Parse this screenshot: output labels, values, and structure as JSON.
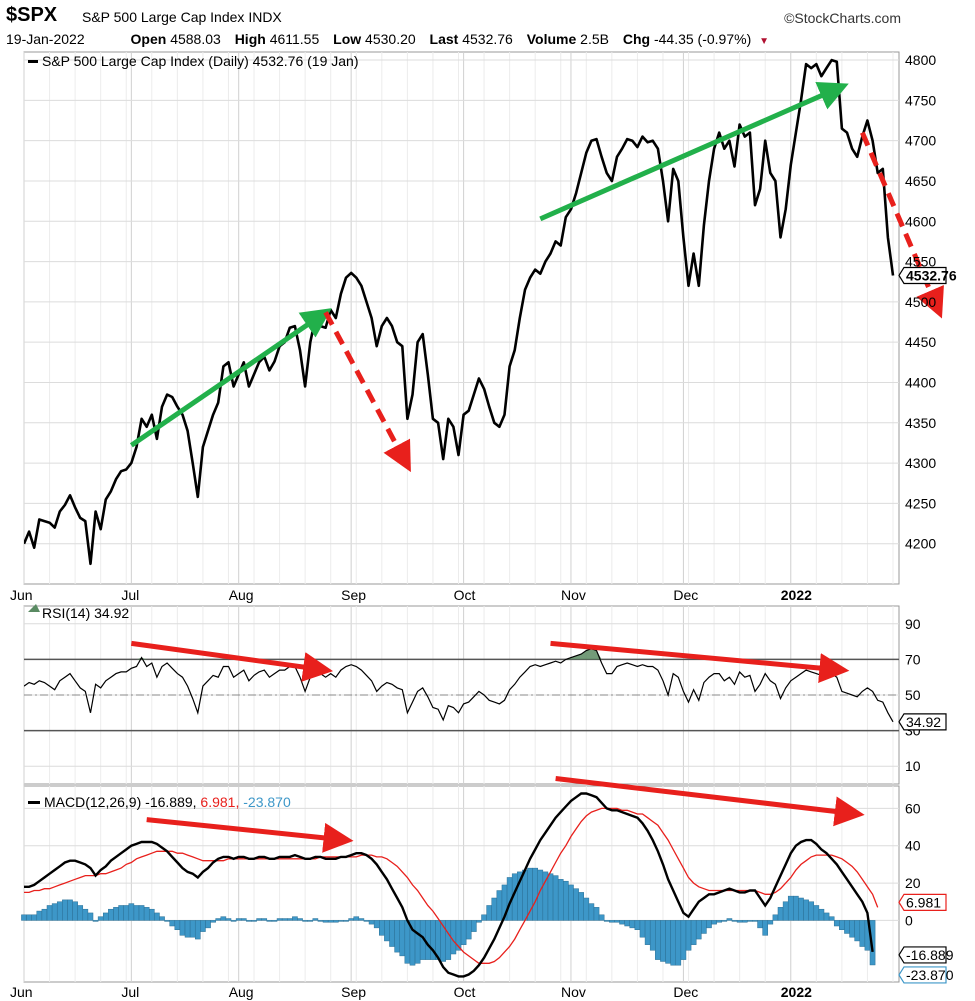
{
  "header": {
    "symbol": "$SPX",
    "index_name": "S&P 500 Large Cap Index",
    "exchange": "INDX",
    "brand": "©StockCharts.com",
    "date": "19-Jan-2022",
    "open_label": "Open",
    "open": "4588.03",
    "high_label": "High",
    "high": "4611.55",
    "low_label": "Low",
    "low": "4530.20",
    "last_label": "Last",
    "last": "4532.76",
    "volume_label": "Volume",
    "volume": "2.5B",
    "chg_label": "Chg",
    "chg": "-44.35 (-0.97%)"
  },
  "chart_data": [
    {
      "type": "line",
      "title": "S&P 500 Large Cap Index (Daily) 4532.76 (19 Jan)",
      "x_labels": [
        "Jun",
        "Jul",
        "Aug",
        "Sep",
        "Oct",
        "Nov",
        "Dec",
        "2022"
      ],
      "y_ticks": [
        4200,
        4250,
        4300,
        4350,
        4400,
        4450,
        4500,
        4550,
        4600,
        4650,
        4700,
        4750,
        4800
      ],
      "ylim": [
        4150,
        4810
      ],
      "last_value_label": "4532.76",
      "series": [
        {
          "name": "S&P 500 Large Cap Index (Daily)",
          "values": [
            4200,
            4215,
            4195,
            4230,
            4228,
            4226,
            4220,
            4240,
            4248,
            4260,
            4245,
            4232,
            4228,
            4175,
            4240,
            4218,
            4255,
            4265,
            4280,
            4290,
            4292,
            4300,
            4320,
            4355,
            4345,
            4360,
            4330,
            4370,
            4385,
            4382,
            4370,
            4360,
            4340,
            4300,
            4258,
            4320,
            4340,
            4360,
            4375,
            4420,
            4425,
            4395,
            4410,
            4425,
            4395,
            4410,
            4425,
            4432,
            4415,
            4426,
            4445,
            4450,
            4468,
            4470,
            4440,
            4395,
            4450,
            4480,
            4470,
            4468,
            4490,
            4480,
            4510,
            4530,
            4536,
            4530,
            4520,
            4500,
            4480,
            4445,
            4470,
            4480,
            4470,
            4450,
            4445,
            4355,
            4385,
            4450,
            4460,
            4410,
            4355,
            4350,
            4305,
            4355,
            4345,
            4310,
            4360,
            4365,
            4385,
            4405,
            4392,
            4370,
            4350,
            4345,
            4360,
            4420,
            4440,
            4480,
            4515,
            4530,
            4540,
            4535,
            4550,
            4560,
            4575,
            4570,
            4605,
            4615,
            4635,
            4660,
            4685,
            4700,
            4702,
            4680,
            4660,
            4650,
            4680,
            4690,
            4702,
            4700,
            4692,
            4705,
            4698,
            4700,
            4690,
            4650,
            4600,
            4665,
            4650,
            4580,
            4520,
            4560,
            4520,
            4595,
            4650,
            4690,
            4710,
            4690,
            4700,
            4668,
            4720,
            4705,
            4710,
            4620,
            4640,
            4700,
            4660,
            4650,
            4580,
            4615,
            4670,
            4710,
            4750,
            4795,
            4790,
            4795,
            4780,
            4790,
            4800,
            4798,
            4715,
            4710,
            4690,
            4680,
            4705,
            4725,
            4700,
            4660,
            4665,
            4580,
            4532.76
          ],
          "color": "#000000"
        }
      ],
      "annotations": [
        {
          "type": "arrow",
          "color": "#22b04b",
          "from": [
            21,
            4322
          ],
          "to": [
            59,
            4487
          ]
        },
        {
          "type": "arrow",
          "color": "#e8201c",
          "style": "dashed",
          "from": [
            59,
            4487
          ],
          "to": [
            75,
            4297
          ]
        },
        {
          "type": "arrow",
          "color": "#22b04b",
          "from": [
            101,
            4603
          ],
          "to": [
            160,
            4767
          ]
        },
        {
          "type": "arrow",
          "color": "#e8201c",
          "style": "dashed",
          "from": [
            164,
            4710
          ],
          "to": [
            179,
            4488
          ]
        }
      ]
    },
    {
      "type": "line",
      "title": "RSI(14) 34.92",
      "y_ticks": [
        10,
        30,
        50,
        70,
        90
      ],
      "ylim": [
        0,
        100
      ],
      "reference_lines": [
        70,
        30
      ],
      "midline": 50,
      "last_value_label": "34.92",
      "series": [
        {
          "name": "RSI(14)",
          "values": [
            55,
            57,
            56,
            58,
            57,
            55,
            53,
            58,
            60,
            62,
            58,
            54,
            52,
            40,
            56,
            54,
            58,
            60,
            62,
            63,
            63,
            65,
            66,
            71,
            66,
            68,
            60,
            66,
            68,
            65,
            62,
            60,
            55,
            48,
            40,
            55,
            58,
            61,
            60,
            66,
            66,
            60,
            62,
            64,
            58,
            61,
            63,
            64,
            60,
            62,
            64,
            64,
            66,
            66,
            60,
            52,
            60,
            64,
            62,
            60,
            62,
            60,
            64,
            66,
            67,
            66,
            64,
            61,
            58,
            52,
            55,
            57,
            56,
            54,
            53,
            40,
            46,
            52,
            54,
            49,
            43,
            42,
            36,
            44,
            43,
            40,
            45,
            46,
            49,
            52,
            50,
            47,
            46,
            45,
            47,
            53,
            56,
            60,
            63,
            66,
            67,
            66,
            67,
            68,
            69,
            68,
            70,
            71,
            72,
            73,
            75,
            76,
            75,
            68,
            62,
            62,
            66,
            67,
            68,
            67,
            66,
            67,
            66,
            66,
            64,
            58,
            50,
            62,
            60,
            52,
            46,
            53,
            47,
            57,
            60,
            62,
            62,
            58,
            60,
            56,
            63,
            60,
            61,
            52,
            56,
            62,
            58,
            56,
            48,
            54,
            58,
            60,
            62,
            64,
            63,
            62,
            61,
            62,
            62,
            60,
            52,
            51,
            50,
            49,
            52,
            54,
            52,
            47,
            46,
            40,
            34.92
          ],
          "color": "#000000"
        }
      ],
      "annotations": [
        {
          "type": "arrow",
          "color": "#e8201c",
          "from": [
            21,
            79
          ],
          "to": [
            59,
            64
          ]
        },
        {
          "type": "arrow",
          "color": "#e8201c",
          "from": [
            103,
            79
          ],
          "to": [
            160,
            64
          ]
        }
      ]
    },
    {
      "type": "line",
      "title": "MACD(12,26,9)",
      "values_label": "-16.889, 6.981, -23.870",
      "y_ticks": [
        0,
        20,
        40,
        60
      ],
      "ylim": [
        -33,
        72
      ],
      "last_value_labels": [
        "6.981",
        "-16.889",
        "-23.870"
      ],
      "series": [
        {
          "name": "MACD(12,26,9)",
          "color": "#000000",
          "values": [
            18,
            18,
            19,
            21,
            23,
            25,
            27,
            29,
            31,
            32,
            32,
            31,
            30,
            28,
            24,
            27,
            29,
            32,
            34,
            36,
            38,
            40,
            41,
            42,
            42,
            42,
            41,
            39,
            37,
            34,
            31,
            28,
            26,
            25,
            23,
            26,
            28,
            31,
            33,
            34,
            34,
            33,
            34,
            34,
            33,
            33,
            34,
            34,
            33,
            33,
            34,
            34,
            34,
            35,
            34,
            33,
            33,
            34,
            34,
            33,
            33,
            33,
            34,
            34,
            35,
            36,
            36,
            35,
            33,
            30,
            26,
            22,
            17,
            12,
            7,
            0,
            -5,
            -7,
            -9,
            -13,
            -16,
            -20,
            -25,
            -28,
            -29,
            -30,
            -30,
            -29,
            -27,
            -24,
            -20,
            -15,
            -10,
            -4,
            2,
            9,
            15,
            21,
            27,
            33,
            38,
            43,
            47,
            51,
            55,
            58,
            61,
            64,
            66,
            68,
            68,
            67,
            66,
            63,
            60,
            59,
            59,
            58,
            57,
            56,
            55,
            52,
            48,
            43,
            37,
            30,
            22,
            16,
            10,
            4,
            2,
            6,
            10,
            12,
            14,
            14,
            15,
            16,
            17,
            16,
            15,
            15,
            16,
            16,
            12,
            8,
            12,
            18,
            24,
            30,
            36,
            40,
            42,
            43,
            43,
            41,
            38,
            36,
            33,
            30,
            26,
            22,
            18,
            14,
            10,
            4,
            -16.889
          ]
        },
        {
          "name": "Signal",
          "color": "#e8201c",
          "values": [
            15,
            15,
            16,
            16,
            17,
            17,
            18,
            19,
            20,
            21,
            22,
            23,
            24,
            24,
            24,
            25,
            25,
            26,
            27,
            28,
            30,
            31,
            33,
            34,
            35,
            36,
            37,
            37,
            37,
            37,
            36,
            36,
            35,
            34,
            33,
            32,
            32,
            32,
            32,
            32,
            33,
            33,
            33,
            33,
            33,
            33,
            33,
            33,
            33,
            33,
            33,
            33,
            33,
            33,
            33,
            33,
            33,
            33,
            34,
            34,
            34,
            34,
            34,
            34,
            34,
            34,
            35,
            35,
            35,
            34,
            34,
            33,
            31,
            29,
            26,
            23,
            19,
            16,
            12,
            8,
            5,
            1,
            -3,
            -7,
            -11,
            -14,
            -17,
            -19,
            -21,
            -23,
            -23,
            -23,
            -22,
            -20,
            -17,
            -14,
            -10,
            -5,
            0,
            5,
            10,
            16,
            21,
            26,
            31,
            36,
            40,
            45,
            49,
            53,
            56,
            58,
            59,
            60,
            60,
            60,
            60,
            59,
            59,
            58,
            57,
            57,
            55,
            53,
            51,
            47,
            43,
            38,
            33,
            28,
            23,
            20,
            18,
            17,
            16,
            16,
            16,
            16,
            16,
            16,
            16,
            16,
            16,
            16,
            15,
            14,
            14,
            15,
            17,
            20,
            23,
            27,
            30,
            32,
            34,
            35,
            35,
            35,
            35,
            34,
            33,
            31,
            29,
            26,
            22,
            18,
            14,
            6.981
          ]
        },
        {
          "name": "Histogram",
          "color": "#3d97c8",
          "values": [
            3,
            3,
            3,
            5,
            6,
            8,
            9,
            10,
            11,
            11,
            10,
            8,
            6,
            4,
            0,
            2,
            4,
            6,
            7,
            8,
            8,
            9,
            8,
            8,
            7,
            6,
            4,
            2,
            0,
            -3,
            -5,
            -8,
            -9,
            -9,
            -10,
            -6,
            -4,
            -1,
            1,
            2,
            1,
            0,
            1,
            1,
            0,
            0,
            1,
            1,
            0,
            0,
            1,
            1,
            1,
            2,
            1,
            0,
            0,
            1,
            0,
            -1,
            -1,
            -1,
            0,
            0,
            1,
            2,
            1,
            0,
            -2,
            -4,
            -8,
            -11,
            -14,
            -17,
            -19,
            -23,
            -24,
            -23,
            -21,
            -21,
            -21,
            -21,
            -22,
            -21,
            -18,
            -16,
            -13,
            -10,
            -6,
            -1,
            3,
            8,
            12,
            16,
            19,
            23,
            25,
            26,
            27,
            28,
            28,
            27,
            26,
            25,
            24,
            22,
            21,
            19,
            17,
            15,
            12,
            9,
            7,
            3,
            0,
            -1,
            -1,
            -2,
            -3,
            -4,
            -5,
            -9,
            -13,
            -16,
            -21,
            -22,
            -23,
            -24,
            -24,
            -21,
            -16,
            -13,
            -10,
            -7,
            -4,
            -2,
            -1,
            0,
            1,
            0,
            -1,
            -1,
            0,
            0,
            -4,
            -8,
            -2,
            3,
            7,
            10,
            13,
            13,
            12,
            11,
            10,
            8,
            6,
            4,
            2,
            -3,
            -5,
            -7,
            -9,
            -11,
            -14,
            -16,
            -23.87
          ]
        }
      ],
      "annotations": [
        {
          "type": "arrow",
          "color": "#e8201c",
          "from": [
            24,
            54
          ],
          "to": [
            63,
            43
          ]
        },
        {
          "type": "arrow",
          "color": "#e8201c",
          "from": [
            104,
            76
          ],
          "to": [
            163,
            57
          ]
        }
      ]
    }
  ]
}
